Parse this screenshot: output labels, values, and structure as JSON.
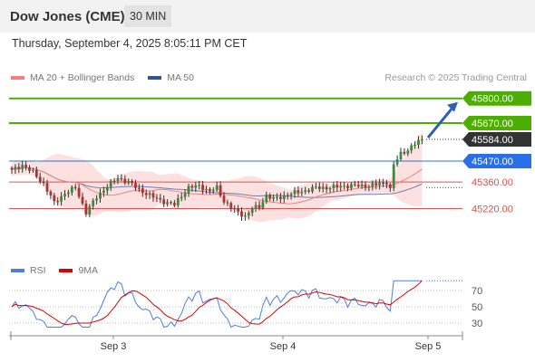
{
  "header": {
    "title": "Dow Jones (CME)",
    "timeframe": "30 MIN"
  },
  "datetime": "Thursday, September 4, 2025 8:05:11 PM CET",
  "legend": {
    "ma20": {
      "label": "MA 20 + Bollinger Bands",
      "color": "#f08080"
    },
    "ma50": {
      "label": "MA 50",
      "color": "#2f5597"
    }
  },
  "credit": "Research © 2025 Trading Central",
  "rsi_legend": {
    "rsi": {
      "label": "RSI",
      "color": "#4f7fdc"
    },
    "ma9": {
      "label": "9MA",
      "color": "#e00000"
    }
  },
  "chart_data": {
    "type": "candlestick",
    "x_ticks": [
      "Sep 3",
      "Sep 4",
      "Sep 5"
    ],
    "ylim": [
      45140,
      45830
    ],
    "levels": [
      {
        "value": 45800.0,
        "label": "45800.00",
        "kind": "resistance",
        "color": "#4caf00"
      },
      {
        "value": 45670.0,
        "label": "45670.00",
        "kind": "resistance",
        "color": "#4caf00"
      },
      {
        "value": 45584.0,
        "label": "45584.00",
        "kind": "last",
        "color": "#333333"
      },
      {
        "value": 45470.0,
        "label": "45470.00",
        "kind": "pivot",
        "color": "#2b6fe8"
      },
      {
        "value": 45360.0,
        "label": "45360.00",
        "kind": "support",
        "color": "#e05050"
      },
      {
        "value": 45220.0,
        "label": "45220.00",
        "kind": "support",
        "color": "#e05050"
      }
    ],
    "arrow": {
      "from": 45584,
      "to": 45800,
      "color": "#2f5fb0"
    },
    "rsi": {
      "ticks": [
        70,
        50,
        30
      ],
      "ylim": [
        15,
        85
      ]
    }
  }
}
